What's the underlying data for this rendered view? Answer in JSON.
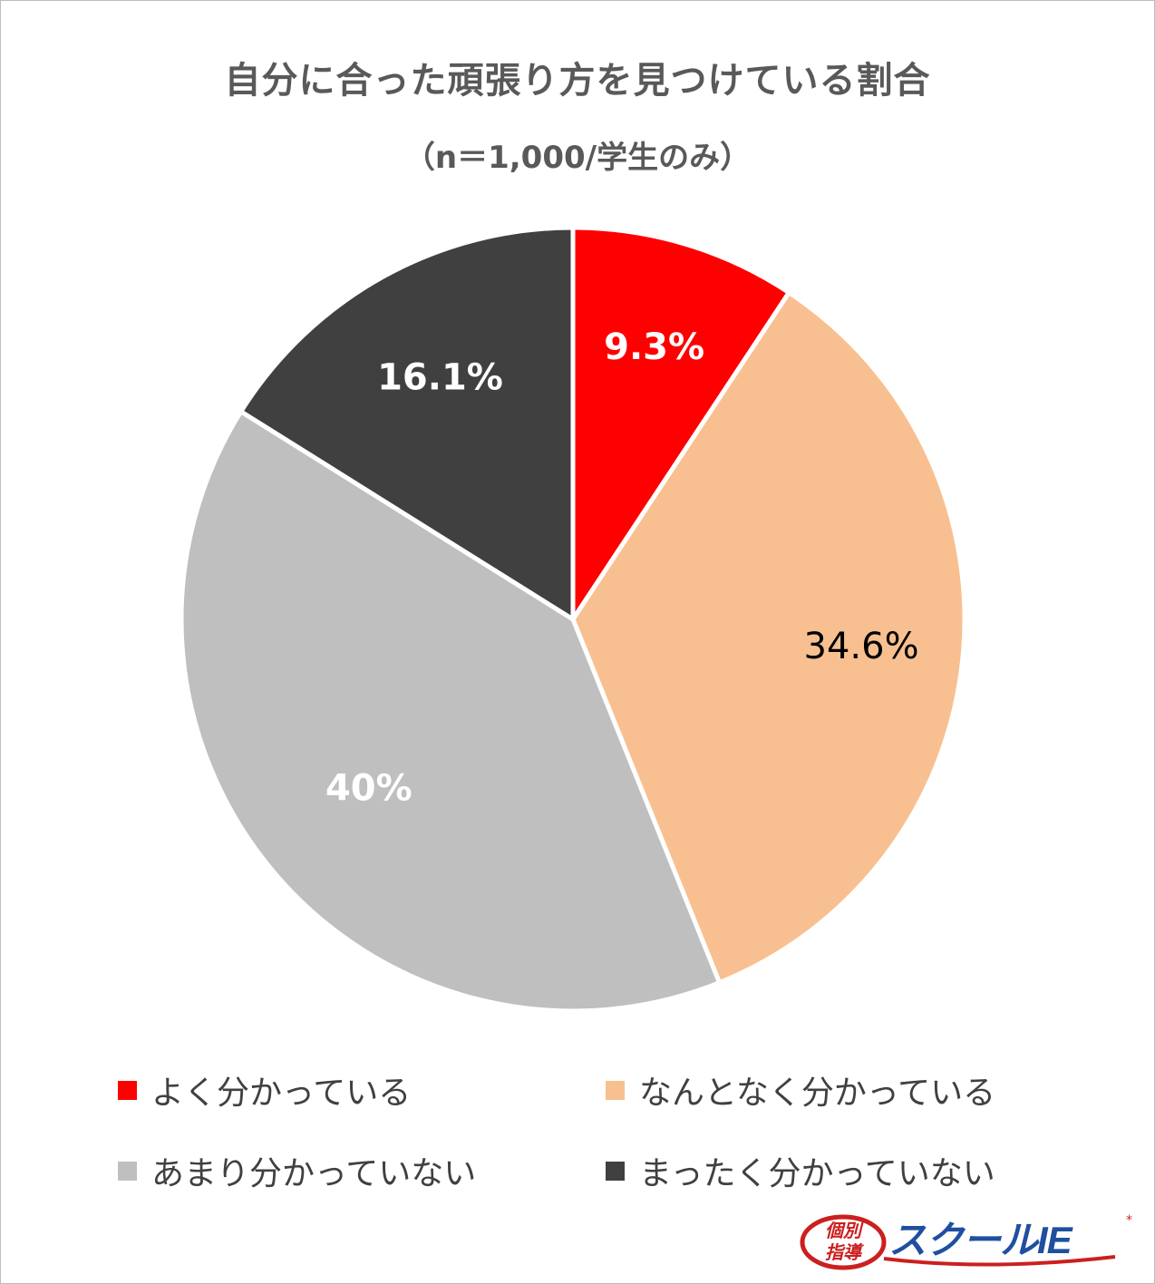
{
  "chart_data": {
    "type": "pie",
    "title": "自分に合った頑張り方を見つけている割合",
    "subtitle": "（n＝1,000/学生のみ）",
    "slices": [
      {
        "label": "よく分かっている",
        "value": 9.3,
        "display": "9.3%",
        "color": "#ff0000",
        "text_color": "#ffffff"
      },
      {
        "label": "なんとなく分かっている",
        "value": 34.6,
        "display": "34.6%",
        "color": "#f8c090",
        "text_color": "#000000"
      },
      {
        "label": "あまり分かっていない",
        "value": 40,
        "display": "40%",
        "color": "#bfbfbf",
        "text_color": "#ffffff"
      },
      {
        "label": "まったく分かっていない",
        "value": 16.1,
        "display": "16.1%",
        "color": "#404040",
        "text_color": "#ffffff"
      }
    ],
    "legend_position": "bottom",
    "start_angle": "12 o'clock, clockwise"
  },
  "logo": {
    "badge_top": "個別",
    "badge_bottom": "指導",
    "brand": "スクールIE",
    "accent_color": "#cc1f1f",
    "brand_color": "#1f4fa0"
  }
}
